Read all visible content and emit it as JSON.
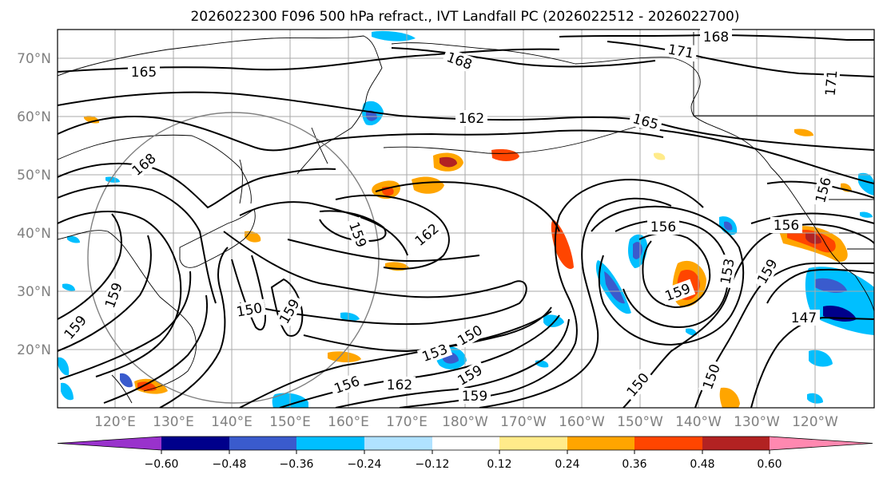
{
  "title": "2026022300 F096 500 hPa refract., IVT Landfall PC (2026022512 - 2026022700)",
  "lat_labels": [
    "70°N",
    "60°N",
    "50°N",
    "40°N",
    "30°N",
    "20°N"
  ],
  "lon_labels": [
    "120°E",
    "130°E",
    "140°E",
    "150°E",
    "160°E",
    "170°E",
    "180°W",
    "170°W",
    "160°W",
    "150°W",
    "140°W",
    "130°W",
    "120°W"
  ],
  "contour_labels": [
    "165",
    "168",
    "168",
    "171",
    "171",
    "162",
    "165",
    "168",
    "159",
    "162",
    "150",
    "159",
    "156",
    "156",
    "159",
    "153",
    "156",
    "159",
    "159",
    "153",
    "150",
    "159",
    "156",
    "162",
    "159",
    "150",
    "150",
    "147",
    "159"
  ],
  "colorbar": {
    "ticks": [
      "−0.60",
      "−0.48",
      "−0.36",
      "−0.24",
      "−0.12",
      "0.12",
      "0.24",
      "0.36",
      "0.48",
      "0.60"
    ],
    "colors": [
      "#9932cc",
      "#00008b",
      "#3a5bcd",
      "#00bfff",
      "#b0e2ff",
      "#ffffff",
      "#ffeb8a",
      "#ffa500",
      "#ff4500",
      "#b22222",
      "#ff88b0"
    ]
  }
}
